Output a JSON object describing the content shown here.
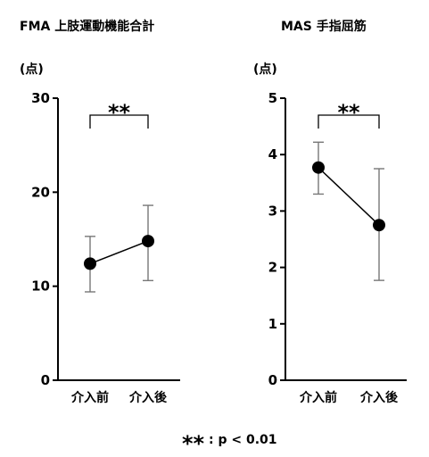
{
  "chart_data": [
    {
      "type": "line",
      "title": "FMA 上肢運動機能合計",
      "ylabel": "(点)",
      "categories": [
        "介入前",
        "介入後"
      ],
      "values": [
        12.4,
        14.8
      ],
      "error_low": [
        9.4,
        10.6
      ],
      "error_high": [
        15.3,
        18.6
      ],
      "ylim": [
        0,
        30
      ],
      "yticks": [
        0,
        10,
        20,
        30
      ],
      "significance": "**"
    },
    {
      "type": "line",
      "title": "MAS 手指屈筋",
      "ylabel": "(点)",
      "categories": [
        "介入前",
        "介入後"
      ],
      "values": [
        3.77,
        2.75
      ],
      "error_low": [
        3.3,
        1.77
      ],
      "error_high": [
        4.22,
        3.75
      ],
      "ylim": [
        0,
        5
      ],
      "yticks": [
        0,
        1,
        2,
        3,
        4,
        5
      ],
      "significance": "**"
    }
  ],
  "footnote": {
    "mark": "**",
    "text": ": p < 0.01"
  }
}
